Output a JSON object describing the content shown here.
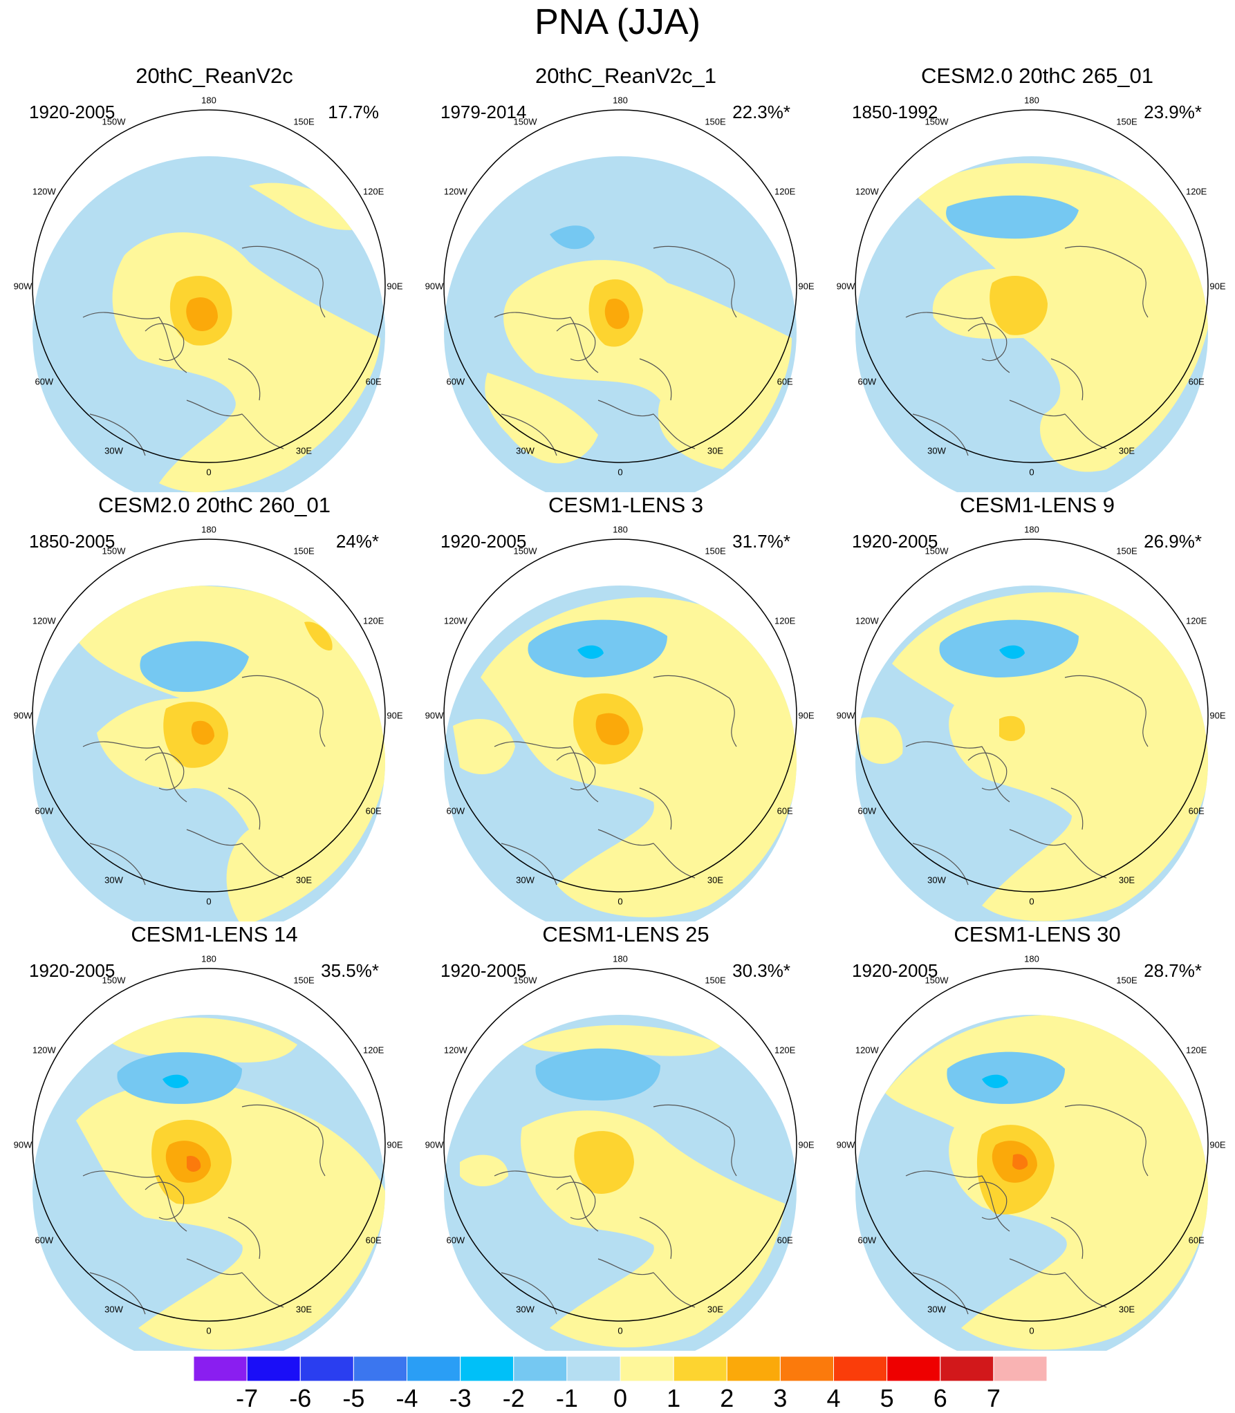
{
  "title": "PNA (JJA)",
  "colors": {
    "neg7": "#8a1ef0",
    "neg6": "#1a0ef7",
    "neg5": "#2a3ef0",
    "neg4": "#3b76ef",
    "neg3": "#2a9ef5",
    "neg2": "#00c0f8",
    "neg1": "#75c8f2",
    "neg0": "#b5def2",
    "pos0": "#fef79a",
    "pos1": "#fdd430",
    "pos2": "#fba90a",
    "pos3": "#fb7a0c",
    "pos4": "#fa3d0a",
    "pos5": "#ee0000",
    "pos6": "#d2181b",
    "pos7": "#f9b3b3",
    "coast": "#555555",
    "border": "#000000"
  },
  "lon_labels": [
    "180",
    "150E",
    "120E",
    "90E",
    "60E",
    "30E",
    "0",
    "30W",
    "60W",
    "90W",
    "120W",
    "150W"
  ],
  "panels": [
    {
      "title": "20thC_ReanV2c",
      "period": "1920-2005",
      "pct": "17.7%"
    },
    {
      "title": "20thC_ReanV2c_1",
      "period": "1979-2014",
      "pct": "22.3%*"
    },
    {
      "title": "CESM2.0 20thC 265_01",
      "period": "1850-1992",
      "pct": "23.9%*"
    },
    {
      "title": "CESM2.0 20thC 260_01",
      "period": "1850-2005",
      "pct": "24%*"
    },
    {
      "title": "CESM1-LENS 3",
      "period": "1920-2005",
      "pct": "31.7%*"
    },
    {
      "title": "CESM1-LENS 9",
      "period": "1920-2005",
      "pct": "26.9%*"
    },
    {
      "title": "CESM1-LENS 14",
      "period": "1920-2005",
      "pct": "35.5%*"
    },
    {
      "title": "CESM1-LENS 25",
      "period": "1920-2005",
      "pct": "30.3%*"
    },
    {
      "title": "CESM1-LENS 30",
      "period": "1920-2005",
      "pct": "28.7%*"
    }
  ],
  "colorbar": {
    "labels": [
      "-7",
      "-6",
      "-5",
      "-4",
      "-3",
      "-2",
      "-1",
      "0",
      "1",
      "2",
      "3",
      "4",
      "5",
      "6",
      "7"
    ]
  }
}
